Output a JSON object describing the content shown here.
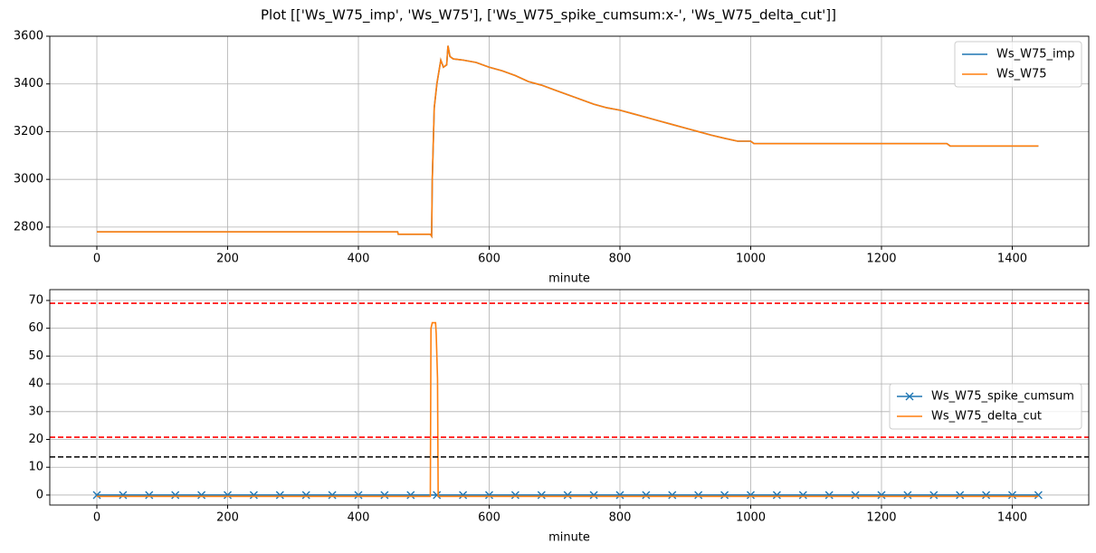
{
  "title": "Plot [['Ws_W75_imp', 'Ws_W75'], ['Ws_W75_spike_cumsum:x-', 'Ws_W75_delta_cut']]",
  "chart_data": [
    {
      "type": "line",
      "xlabel": "minute",
      "xlim": [
        -72,
        1517
      ],
      "xticks": [
        0,
        200,
        400,
        600,
        800,
        1000,
        1200,
        1400
      ],
      "ylim": [
        2720,
        3600
      ],
      "yticks": [
        2800,
        3000,
        3200,
        3400,
        3600
      ],
      "grid": true,
      "legend": "upper right",
      "series": [
        {
          "name": "Ws_W75_imp",
          "color": "#1f77b4",
          "x": [
            0,
            460,
            461,
            510,
            512,
            513,
            516,
            520,
            526,
            530,
            535,
            537,
            540,
            545,
            560,
            580,
            600,
            620,
            640,
            660,
            680,
            700,
            720,
            740,
            760,
            780,
            800,
            820,
            840,
            860,
            880,
            900,
            920,
            940,
            960,
            980,
            1000,
            1005,
            1300,
            1305,
            1440
          ],
          "values": [
            2780,
            2780,
            2770,
            2770,
            2762,
            3000,
            3300,
            3400,
            3500,
            3470,
            3480,
            3560,
            3515,
            3505,
            3500,
            3490,
            3470,
            3455,
            3435,
            3410,
            3395,
            3375,
            3355,
            3335,
            3315,
            3300,
            3290,
            3275,
            3260,
            3245,
            3230,
            3215,
            3200,
            3185,
            3172,
            3160,
            3160,
            3150,
            3150,
            3140,
            3140
          ]
        },
        {
          "name": "Ws_W75",
          "color": "#ff7f0e",
          "x": [
            0,
            460,
            461,
            510,
            512,
            513,
            516,
            520,
            526,
            530,
            535,
            537,
            540,
            545,
            560,
            580,
            600,
            620,
            640,
            660,
            680,
            700,
            720,
            740,
            760,
            780,
            800,
            820,
            840,
            860,
            880,
            900,
            920,
            940,
            960,
            980,
            1000,
            1005,
            1300,
            1305,
            1440
          ],
          "values": [
            2780,
            2780,
            2770,
            2770,
            2762,
            3000,
            3300,
            3400,
            3500,
            3470,
            3480,
            3560,
            3515,
            3505,
            3500,
            3490,
            3470,
            3455,
            3435,
            3410,
            3395,
            3375,
            3355,
            3335,
            3315,
            3300,
            3290,
            3275,
            3260,
            3245,
            3230,
            3215,
            3200,
            3185,
            3172,
            3160,
            3160,
            3150,
            3150,
            3140,
            3140
          ]
        }
      ]
    },
    {
      "type": "line",
      "xlabel": "minute",
      "xlim": [
        -72,
        1517
      ],
      "xticks": [
        0,
        200,
        400,
        600,
        800,
        1000,
        1200,
        1400
      ],
      "ylim": [
        -3.6,
        73.9
      ],
      "yticks": [
        0,
        10,
        20,
        30,
        40,
        50,
        60,
        70
      ],
      "grid": true,
      "legend": "center right",
      "hlines": [
        {
          "value": 69,
          "color": "#ff0000",
          "style": "dashed"
        },
        {
          "value": 20.8,
          "color": "#ff0000",
          "style": "dashed"
        },
        {
          "value": 13.7,
          "color": "#000000",
          "style": "dashed"
        }
      ],
      "series": [
        {
          "name": "Ws_W75_spike_cumsum",
          "color": "#1f77b4",
          "marker": "x",
          "x": [
            0,
            40,
            80,
            120,
            160,
            200,
            240,
            280,
            320,
            360,
            400,
            440,
            480,
            520,
            560,
            600,
            640,
            680,
            720,
            760,
            800,
            840,
            880,
            920,
            960,
            1000,
            1040,
            1080,
            1120,
            1160,
            1200,
            1240,
            1280,
            1320,
            1360,
            1400,
            1440
          ],
          "values": [
            0,
            0,
            0,
            0,
            0,
            0,
            0,
            0,
            0,
            0,
            0,
            0,
            0,
            0,
            0,
            0,
            0,
            0,
            0,
            0,
            0,
            0,
            0,
            0,
            0,
            0,
            0,
            0,
            0,
            0,
            0,
            0,
            0,
            0,
            0,
            0,
            0
          ]
        },
        {
          "name": "Ws_W75_delta_cut",
          "color": "#ff7f0e",
          "x": [
            0,
            510,
            511,
            513,
            518,
            519,
            521,
            522,
            1440
          ],
          "values": [
            -0.5,
            -0.5,
            60,
            62,
            62,
            58,
            42,
            -0.5,
            -0.5
          ]
        }
      ]
    }
  ]
}
